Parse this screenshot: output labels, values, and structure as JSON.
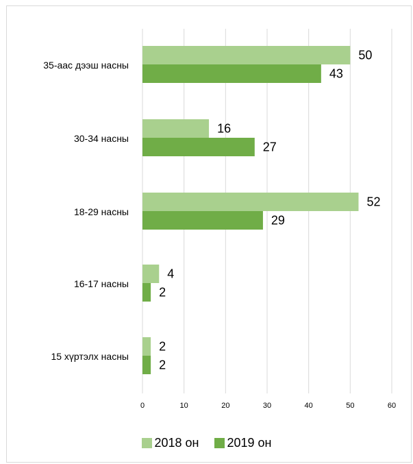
{
  "chart_data": {
    "type": "bar",
    "orientation": "horizontal",
    "title": "",
    "xlabel": "",
    "ylabel": "",
    "xlim": [
      0,
      60
    ],
    "x_ticks": [
      "0",
      "10",
      "20",
      "30",
      "40",
      "50",
      "60"
    ],
    "categories": [
      "35-аас дээш насны",
      "30-34 насны",
      "18-29 насны",
      "16-17 насны",
      "15 хүртэлх насны"
    ],
    "series": [
      {
        "name": "2018 он",
        "values": [
          50,
          16,
          52,
          4,
          2
        ],
        "color": "#a9d08e"
      },
      {
        "name": "2019 он",
        "values": [
          43,
          27,
          29,
          2,
          2
        ],
        "color": "#70ad47"
      }
    ],
    "grid": "vertical",
    "legend": "bottom"
  }
}
